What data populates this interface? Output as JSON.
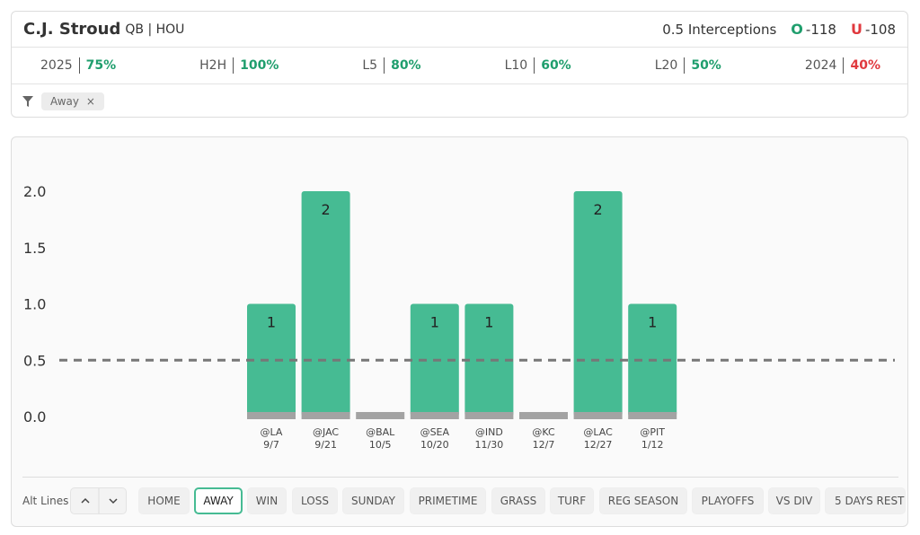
{
  "header": {
    "player": "C.J. Stroud",
    "team": "QB | HOU",
    "market": "0.5 Interceptions",
    "over_label": "O",
    "over_odds": "-118",
    "under_label": "U",
    "under_odds": "-108"
  },
  "stats": [
    {
      "label": "2025",
      "value": "75%",
      "color": "#1f9e6d"
    },
    {
      "label": "H2H",
      "value": "100%",
      "color": "#1f9e6d"
    },
    {
      "label": "L5",
      "value": "80%",
      "color": "#1f9e6d"
    },
    {
      "label": "L10",
      "value": "60%",
      "color": "#1f9e6d"
    },
    {
      "label": "L20",
      "value": "50%",
      "color": "#1f9e6d"
    },
    {
      "label": "2024",
      "value": "40%",
      "color": "#e0393e"
    }
  ],
  "filter": {
    "chip": "Away",
    "close": "×"
  },
  "chart_data": {
    "type": "bar",
    "categories": [
      "@LA",
      "@JAC",
      "@BAL",
      "@SEA",
      "@IND",
      "@KC",
      "@LAC",
      "@PIT"
    ],
    "dates": [
      "9/7",
      "9/21",
      "10/5",
      "10/20",
      "11/30",
      "12/7",
      "12/27",
      "1/12"
    ],
    "values": [
      1,
      2,
      0,
      1,
      1,
      0,
      2,
      1
    ],
    "color": "#46bb93",
    "ylim": [
      0,
      2
    ],
    "yticks": [
      {
        "value": 0,
        "label": "0.0"
      },
      {
        "value": 0.5,
        "label": "0.5"
      },
      {
        "value": 1,
        "label": "1.0"
      },
      {
        "value": 1.5,
        "label": "1.5"
      },
      {
        "value": 2,
        "label": "2.0"
      }
    ],
    "threshold": 0.5
  },
  "controls": {
    "alt_lines": "Alt Lines",
    "buttons": [
      "HOME",
      "AWAY",
      "WIN",
      "LOSS",
      "SUNDAY",
      "PRIMETIME",
      "GRASS",
      "TURF",
      "REG SEASON",
      "PLAYOFFS",
      "VS DIV",
      "5 DAYS REST"
    ],
    "selected": "AWAY"
  }
}
